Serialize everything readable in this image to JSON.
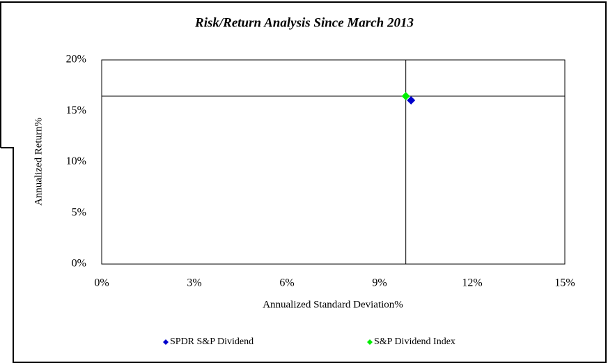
{
  "chart_data": {
    "type": "scatter",
    "title": "Risk/Return Analysis Since March 2013",
    "x_label": "Annualized Standard Deviation%",
    "y_label": "Annualized Return%",
    "xlim": [
      0,
      15
    ],
    "ylim": [
      0,
      20
    ],
    "xticks": [
      {
        "value": 0,
        "label": "0%"
      },
      {
        "value": 3,
        "label": "3%"
      },
      {
        "value": 6,
        "label": "6%"
      },
      {
        "value": 9,
        "label": "9%"
      },
      {
        "value": 12,
        "label": "12%"
      },
      {
        "value": 15,
        "label": "15%"
      }
    ],
    "yticks": [
      {
        "value": 0,
        "label": "0%"
      },
      {
        "value": 5,
        "label": "5%"
      },
      {
        "value": 10,
        "label": "10%"
      },
      {
        "value": 15,
        "label": "15%"
      },
      {
        "value": 20,
        "label": "20%"
      }
    ],
    "crosshair": true,
    "series": [
      {
        "name": "SPDR S&P Dividend",
        "color": "#0000cc",
        "x": [
          10.02
        ],
        "values": [
          16.04
        ]
      },
      {
        "name": "S&P Dividend Index",
        "color": "#00ee00",
        "x": [
          9.85
        ],
        "values": [
          16.45
        ]
      }
    ]
  }
}
